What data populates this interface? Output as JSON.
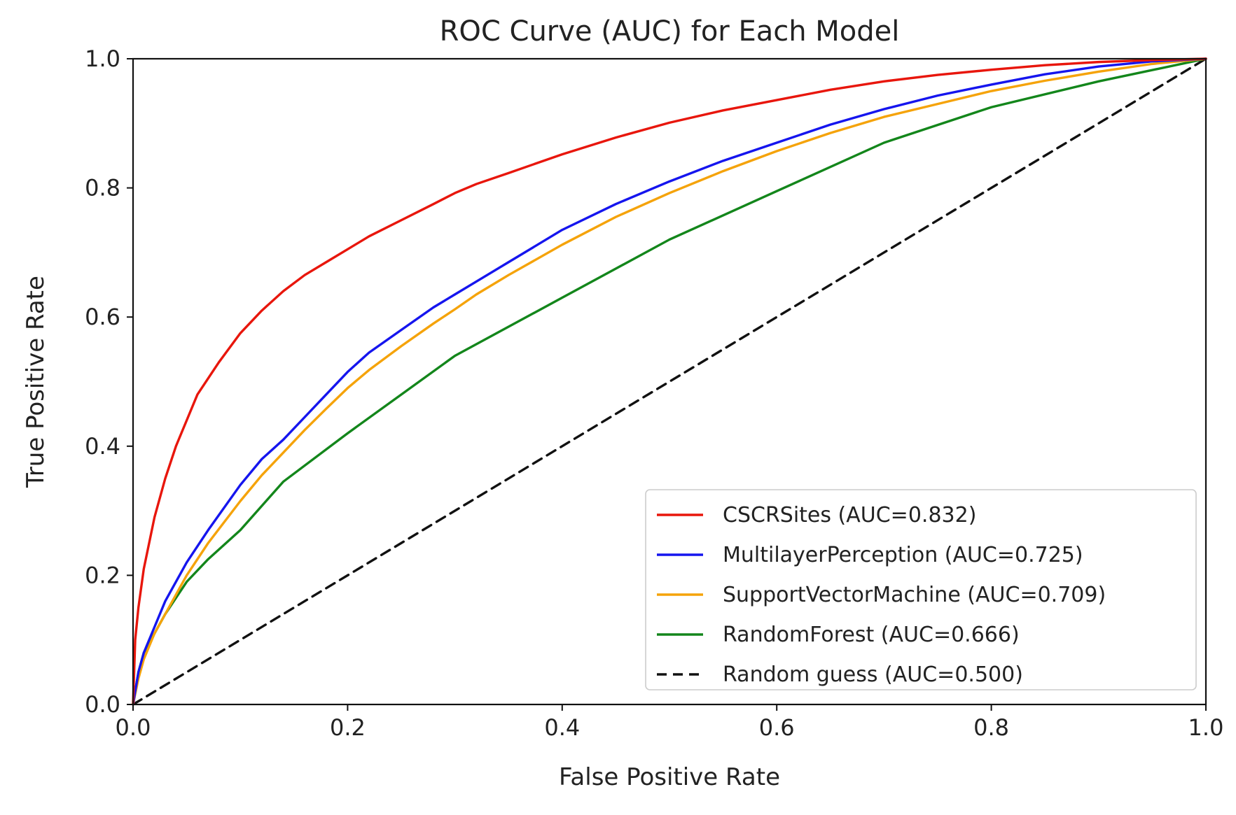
{
  "chart_data": {
    "type": "line",
    "title": "ROC Curve (AUC) for Each Model",
    "xlabel": "False Positive Rate",
    "ylabel": "True Positive Rate",
    "xlim": [
      0,
      1
    ],
    "ylim": [
      0,
      1
    ],
    "xticks": [
      "0.0",
      "0.2",
      "0.4",
      "0.6",
      "0.8",
      "1.0"
    ],
    "yticks": [
      "0.0",
      "0.2",
      "0.4",
      "0.6",
      "0.8",
      "1.0"
    ],
    "grid": false,
    "legend_position": "lower-right",
    "series": [
      {
        "name": "CSCRSites (AUC=0.832)",
        "color": "#e8160c",
        "style": "solid",
        "x": [
          0,
          0.002,
          0.005,
          0.01,
          0.02,
          0.03,
          0.04,
          0.05,
          0.06,
          0.08,
          0.1,
          0.12,
          0.14,
          0.16,
          0.18,
          0.2,
          0.22,
          0.25,
          0.28,
          0.3,
          0.32,
          0.35,
          0.4,
          0.45,
          0.5,
          0.55,
          0.6,
          0.65,
          0.7,
          0.75,
          0.8,
          0.85,
          0.9,
          0.95,
          1.0
        ],
        "y": [
          0,
          0.1,
          0.15,
          0.21,
          0.29,
          0.35,
          0.4,
          0.44,
          0.48,
          0.53,
          0.575,
          0.61,
          0.64,
          0.665,
          0.685,
          0.705,
          0.725,
          0.75,
          0.775,
          0.792,
          0.806,
          0.823,
          0.852,
          0.878,
          0.901,
          0.92,
          0.936,
          0.952,
          0.965,
          0.975,
          0.983,
          0.99,
          0.995,
          0.998,
          1.0
        ]
      },
      {
        "name": "MultilayerPerception (AUC=0.725)",
        "color": "#1515ee",
        "style": "solid",
        "x": [
          0,
          0.005,
          0.01,
          0.02,
          0.03,
          0.05,
          0.07,
          0.1,
          0.12,
          0.14,
          0.16,
          0.18,
          0.2,
          0.22,
          0.25,
          0.28,
          0.3,
          0.32,
          0.35,
          0.4,
          0.45,
          0.5,
          0.55,
          0.6,
          0.65,
          0.7,
          0.75,
          0.8,
          0.85,
          0.9,
          0.95,
          1.0
        ],
        "y": [
          0,
          0.05,
          0.08,
          0.12,
          0.16,
          0.22,
          0.27,
          0.34,
          0.38,
          0.41,
          0.445,
          0.48,
          0.515,
          0.545,
          0.58,
          0.615,
          0.635,
          0.655,
          0.685,
          0.735,
          0.775,
          0.81,
          0.842,
          0.87,
          0.898,
          0.922,
          0.943,
          0.96,
          0.976,
          0.988,
          0.996,
          1.0
        ]
      },
      {
        "name": "SupportVectorMachine (AUC=0.709)",
        "color": "#f5a30a",
        "style": "solid",
        "x": [
          0,
          0.005,
          0.01,
          0.02,
          0.03,
          0.05,
          0.07,
          0.1,
          0.12,
          0.14,
          0.16,
          0.18,
          0.2,
          0.22,
          0.25,
          0.28,
          0.3,
          0.32,
          0.35,
          0.4,
          0.45,
          0.5,
          0.55,
          0.6,
          0.65,
          0.7,
          0.75,
          0.8,
          0.85,
          0.9,
          0.95,
          1.0
        ],
        "y": [
          0,
          0.04,
          0.07,
          0.11,
          0.14,
          0.2,
          0.25,
          0.315,
          0.355,
          0.39,
          0.425,
          0.458,
          0.49,
          0.518,
          0.555,
          0.59,
          0.612,
          0.635,
          0.665,
          0.712,
          0.755,
          0.792,
          0.826,
          0.857,
          0.885,
          0.91,
          0.93,
          0.95,
          0.966,
          0.98,
          0.992,
          1.0
        ]
      },
      {
        "name": "RandomForest (AUC=0.666)",
        "color": "#13861b",
        "style": "solid",
        "x": [
          0,
          0.005,
          0.01,
          0.02,
          0.03,
          0.05,
          0.07,
          0.1,
          0.14,
          0.2,
          0.25,
          0.3,
          0.4,
          0.5,
          0.6,
          0.7,
          0.8,
          0.9,
          1.0
        ],
        "y": [
          0,
          0.05,
          0.08,
          0.11,
          0.14,
          0.19,
          0.225,
          0.27,
          0.345,
          0.42,
          0.48,
          0.54,
          0.63,
          0.72,
          0.795,
          0.87,
          0.925,
          0.965,
          1.0
        ]
      },
      {
        "name": "Random guess (AUC=0.500)",
        "color": "#111111",
        "style": "dashed",
        "x": [
          0,
          1
        ],
        "y": [
          0,
          1
        ]
      }
    ]
  }
}
